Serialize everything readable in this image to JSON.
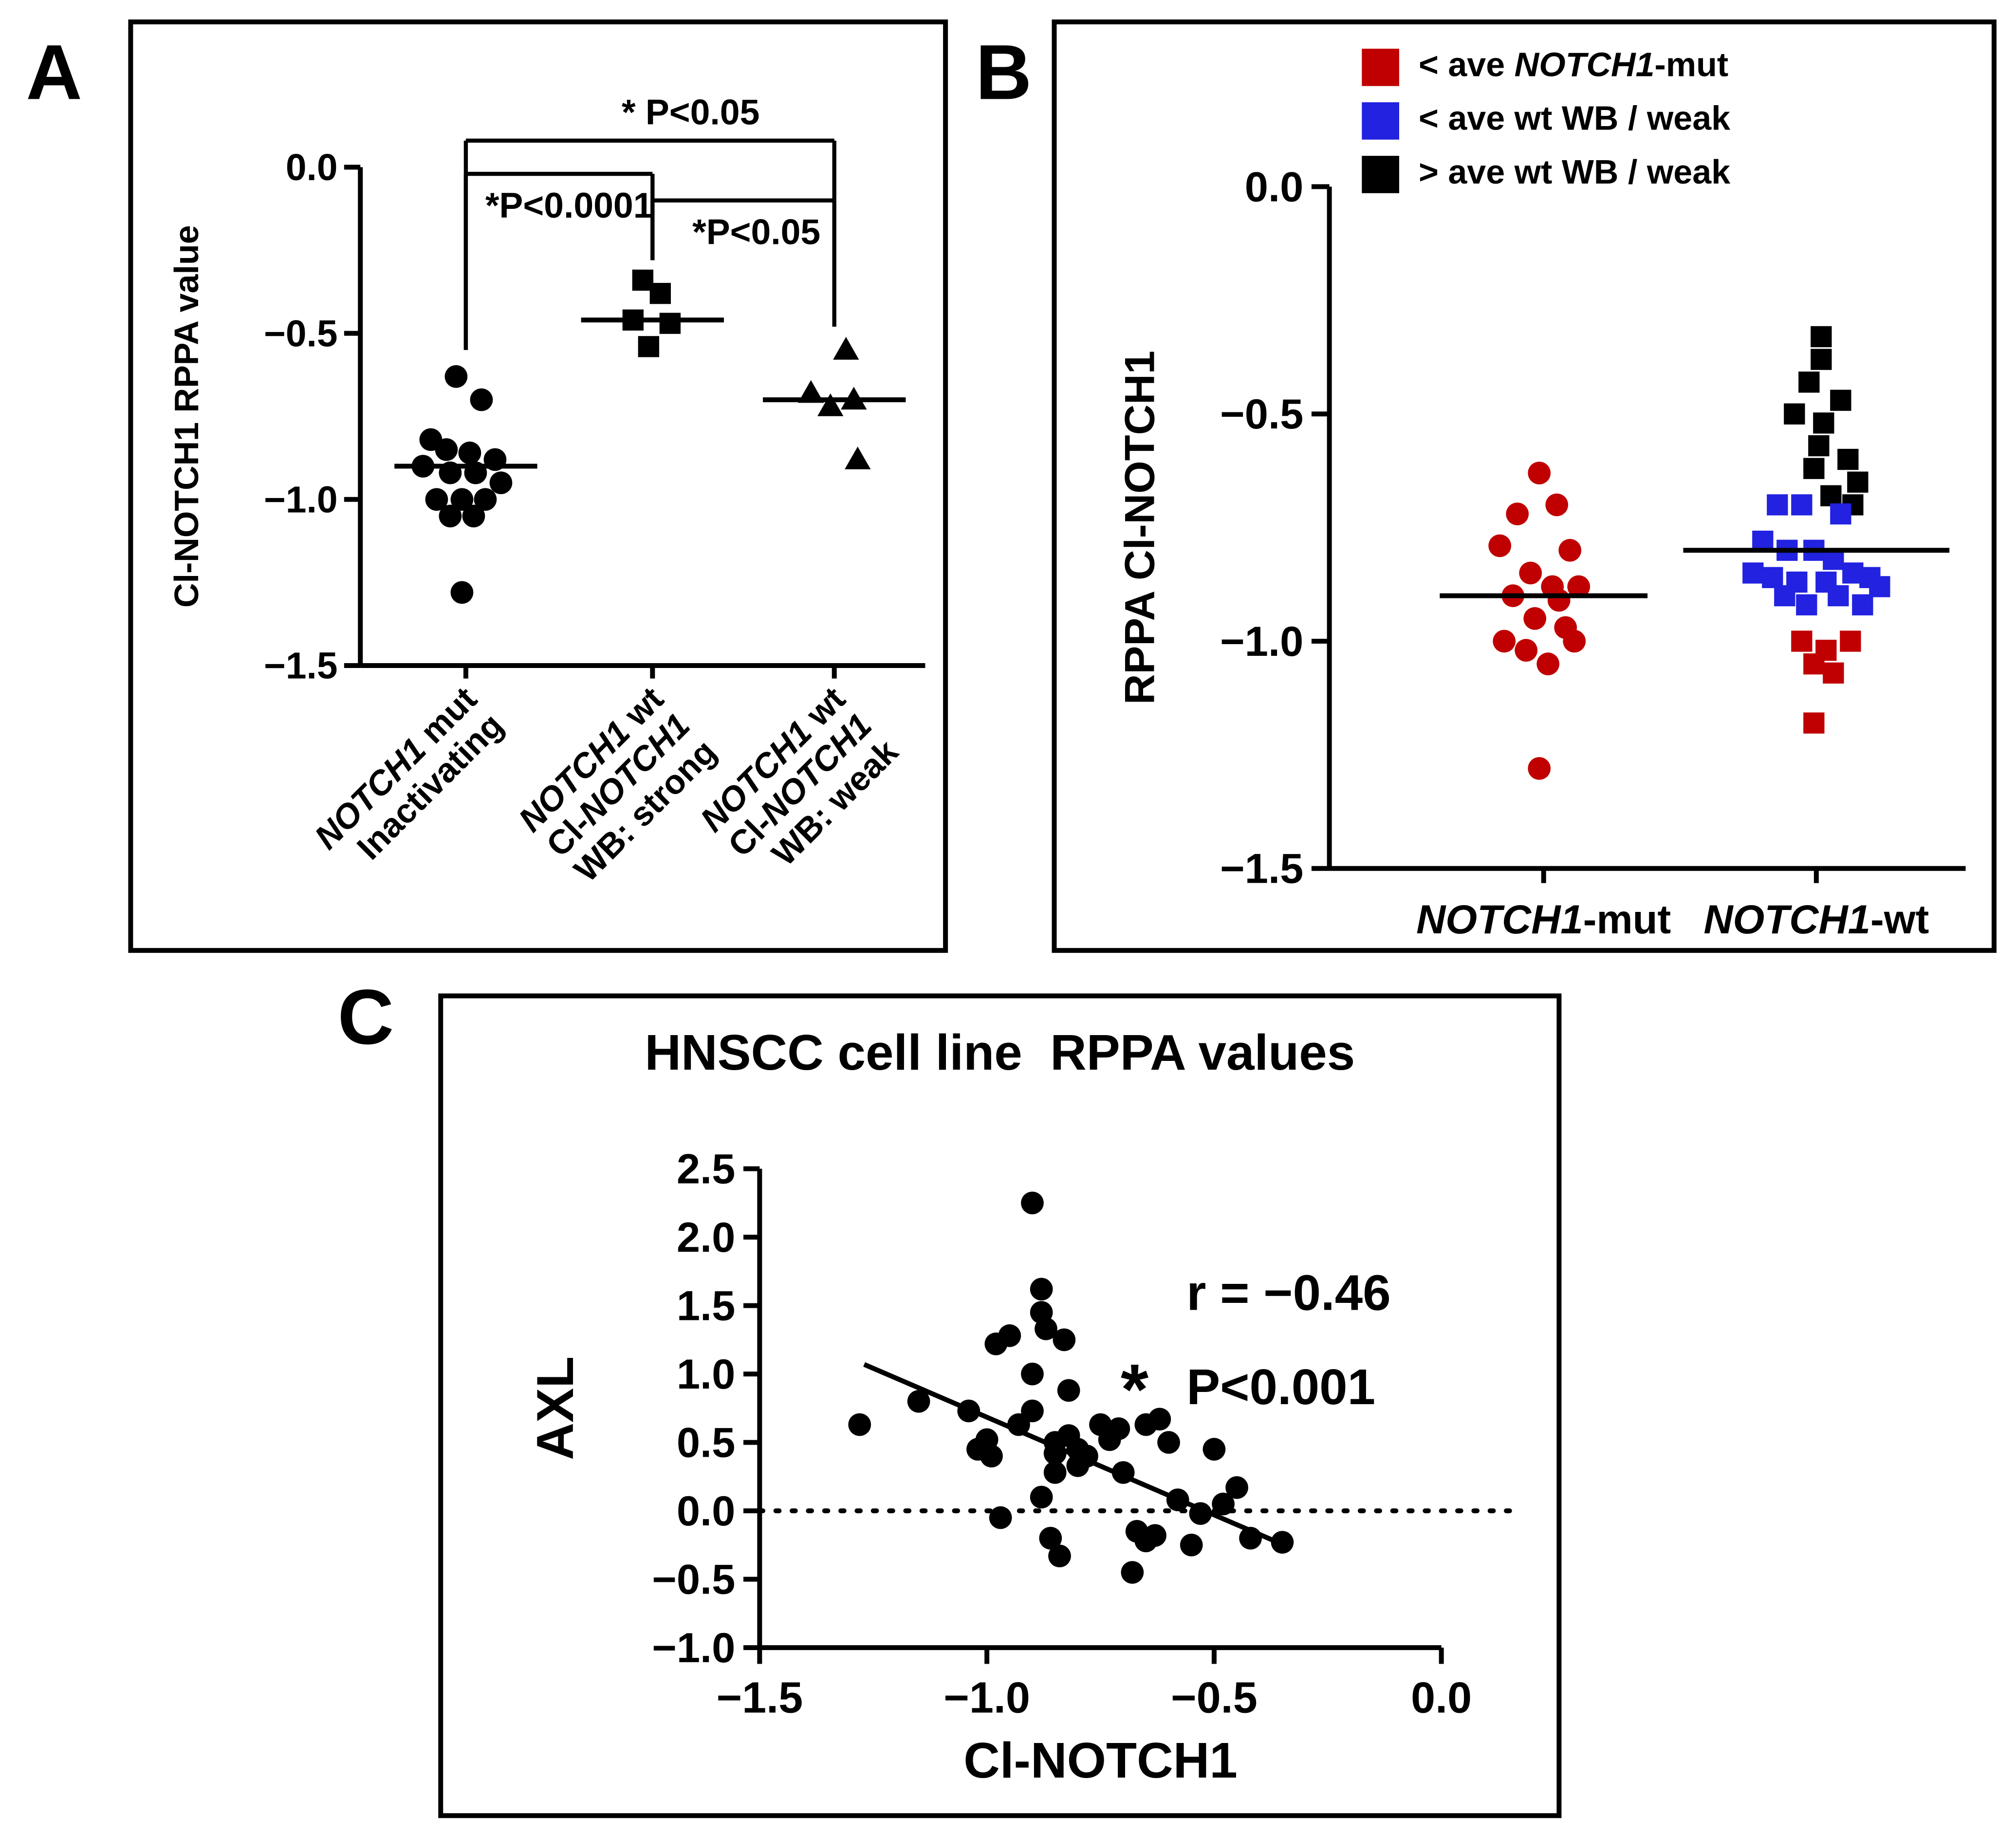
{
  "figure": {
    "panel_a_letter": "A",
    "panel_b_letter": "B",
    "panel_c_letter": "C"
  },
  "chart_data": [
    {
      "id": "A",
      "type": "scatter",
      "subtype": "grouped-dot-plot",
      "ylabel": "Cl-NOTCH1 RPPA value",
      "ylim": [
        -1.5,
        0.0
      ],
      "yticks": [
        0.0,
        -0.5,
        -1.0,
        -1.5
      ],
      "italic_token": "NOTCH1",
      "groups": [
        {
          "label_lines": [
            "NOTCH1 mut",
            "Inactivating"
          ],
          "marker": "circle",
          "color": "#000000",
          "median": -0.9,
          "points": [
            [
              -0.05,
              -0.63
            ],
            [
              0.08,
              -0.7
            ],
            [
              -0.18,
              -0.82
            ],
            [
              -0.1,
              -0.85
            ],
            [
              0.02,
              -0.86
            ],
            [
              0.15,
              -0.88
            ],
            [
              -0.22,
              -0.9
            ],
            [
              -0.08,
              -0.92
            ],
            [
              0.05,
              -0.92
            ],
            [
              0.18,
              -0.95
            ],
            [
              -0.15,
              -1.0
            ],
            [
              -0.02,
              -1.0
            ],
            [
              0.1,
              -1.0
            ],
            [
              -0.08,
              -1.05
            ],
            [
              0.04,
              -1.05
            ],
            [
              -0.02,
              -1.28
            ]
          ]
        },
        {
          "label_lines": [
            "NOTCH1 wt",
            "Cl-NOTCH1",
            "WB: strong"
          ],
          "marker": "square",
          "color": "#000000",
          "median": -0.46,
          "points": [
            [
              -0.05,
              -0.34
            ],
            [
              0.04,
              -0.38
            ],
            [
              -0.1,
              -0.46
            ],
            [
              0.09,
              -0.47
            ],
            [
              -0.02,
              -0.54
            ]
          ]
        },
        {
          "label_lines": [
            "NOTCH1 wt",
            "Cl-NOTCH1",
            "WB: weak"
          ],
          "marker": "triangle",
          "color": "#000000",
          "median": -0.7,
          "points": [
            [
              0.06,
              -0.55
            ],
            [
              -0.12,
              -0.68
            ],
            [
              0.1,
              -0.7
            ],
            [
              -0.02,
              -0.72
            ],
            [
              0.12,
              -0.88
            ]
          ]
        }
      ],
      "significance": [
        {
          "from": 0,
          "to": 2,
          "level": 0.08,
          "drop_from": -0.55,
          "drop_to": -0.1,
          "label": "* P<0.05",
          "label_side": "above"
        },
        {
          "from": 0,
          "to": 1,
          "level": -0.02,
          "drop_from": -0.55,
          "drop_to": -0.28,
          "label": "*P<0.0001",
          "label_side": "below-left"
        },
        {
          "from": 1,
          "to": 2,
          "level": -0.1,
          "drop_from": -0.28,
          "drop_to": -0.48,
          "label": "*P<0.05",
          "label_side": "below"
        }
      ]
    },
    {
      "id": "B",
      "type": "scatter",
      "subtype": "grouped-dot-plot",
      "ylabel": "RPPA Cl-NOTCH1",
      "ylim": [
        -1.5,
        0.0
      ],
      "yticks": [
        0.0,
        -0.5,
        -1.0,
        -1.5
      ],
      "italic_token": "NOTCH1",
      "colors": {
        "red": "#C00000",
        "blue": "#2222E0",
        "black": "#000000"
      },
      "legend": [
        {
          "color_key": "red",
          "label": "< ave NOTCH1-mut"
        },
        {
          "color_key": "blue",
          "label": "< ave wt WB / weak"
        },
        {
          "color_key": "black",
          "label": "> ave wt WB / weak"
        }
      ],
      "groups": [
        {
          "label": "NOTCH1-mut",
          "marker": "circle",
          "color_key": "red",
          "median": -0.9,
          "points": [
            [
              -0.02,
              -0.63
            ],
            [
              -0.12,
              -0.72
            ],
            [
              0.06,
              -0.7
            ],
            [
              -0.2,
              -0.79
            ],
            [
              0.12,
              -0.8
            ],
            [
              -0.06,
              -0.85
            ],
            [
              0.04,
              -0.88
            ],
            [
              -0.14,
              -0.9
            ],
            [
              0.16,
              -0.88
            ],
            [
              0.07,
              -0.91
            ],
            [
              -0.04,
              -0.95
            ],
            [
              0.1,
              -0.97
            ],
            [
              -0.18,
              -1.0
            ],
            [
              -0.08,
              -1.02
            ],
            [
              0.02,
              -1.05
            ],
            [
              0.14,
              -1.0
            ],
            [
              -0.02,
              -1.28
            ]
          ]
        },
        {
          "label": "NOTCH1-wt",
          "marker": "square",
          "color_key": "blue",
          "median": -0.8,
          "points": [
            [
              0.02,
              -0.33,
              "black"
            ],
            [
              0.02,
              -0.38,
              "black"
            ],
            [
              -0.03,
              -0.43,
              "black"
            ],
            [
              0.1,
              -0.47,
              "black"
            ],
            [
              -0.09,
              -0.5,
              "black"
            ],
            [
              0.03,
              -0.52,
              "black"
            ],
            [
              0.01,
              -0.57,
              "black"
            ],
            [
              0.13,
              -0.6,
              "black"
            ],
            [
              -0.01,
              -0.62,
              "black"
            ],
            [
              0.17,
              -0.65,
              "black"
            ],
            [
              0.06,
              -0.68,
              "black"
            ],
            [
              0.15,
              -0.7,
              "black"
            ],
            [
              -0.16,
              -0.7,
              "blue"
            ],
            [
              -0.06,
              -0.7,
              "blue"
            ],
            [
              0.1,
              -0.72,
              "blue"
            ],
            [
              -0.22,
              -0.78,
              "blue"
            ],
            [
              -0.12,
              -0.8,
              "blue"
            ],
            [
              -0.01,
              -0.8,
              "blue"
            ],
            [
              0.07,
              -0.82,
              "blue"
            ],
            [
              -0.26,
              -0.85,
              "blue"
            ],
            [
              -0.18,
              -0.86,
              "blue"
            ],
            [
              -0.08,
              -0.87,
              "blue"
            ],
            [
              0.04,
              -0.87,
              "blue"
            ],
            [
              0.15,
              -0.85,
              "blue"
            ],
            [
              0.22,
              -0.86,
              "blue"
            ],
            [
              -0.13,
              -0.9,
              "blue"
            ],
            [
              -0.04,
              -0.92,
              "blue"
            ],
            [
              0.09,
              -0.9,
              "blue"
            ],
            [
              0.19,
              -0.92,
              "blue"
            ],
            [
              0.26,
              -0.88,
              "blue"
            ],
            [
              -0.06,
              -1.0,
              "red"
            ],
            [
              0.04,
              -1.02,
              "red"
            ],
            [
              -0.01,
              -1.05,
              "red"
            ],
            [
              0.07,
              -1.07,
              "red"
            ],
            [
              0.14,
              -1.0,
              "red"
            ],
            [
              -0.01,
              -1.18,
              "red"
            ]
          ]
        }
      ]
    },
    {
      "id": "C",
      "type": "scatter",
      "title": "HNSCC cell line  RPPA values",
      "xlabel": "Cl-NOTCH1",
      "ylabel": "AXL",
      "xlim": [
        -1.5,
        0.0
      ],
      "ylim": [
        -1.0,
        2.5
      ],
      "xticks": [
        -1.5,
        -1.0,
        -0.5,
        0.0
      ],
      "yticks": [
        2.5,
        2.0,
        1.5,
        1.0,
        0.5,
        0.0,
        -0.5,
        -1.0
      ],
      "zero_line_y": 0.0,
      "point_color": "#000000",
      "regression": {
        "x1": -1.27,
        "y1": 1.07,
        "x2": -0.36,
        "y2": -0.23
      },
      "correlation": {
        "r_label": "r = −0.46",
        "star": "*",
        "p_label": "P<0.001"
      },
      "points": [
        [
          -1.28,
          0.63
        ],
        [
          -1.15,
          0.8
        ],
        [
          -1.04,
          0.73
        ],
        [
          -1.02,
          0.45
        ],
        [
          -1.0,
          0.52
        ],
        [
          -0.99,
          0.4
        ],
        [
          -0.98,
          1.22
        ],
        [
          -0.95,
          1.28
        ],
        [
          -0.97,
          -0.05
        ],
        [
          -0.93,
          0.63
        ],
        [
          -0.9,
          2.25
        ],
        [
          -0.9,
          1.0
        ],
        [
          -0.9,
          0.73
        ],
        [
          -0.88,
          1.62
        ],
        [
          -0.88,
          1.45
        ],
        [
          -0.87,
          1.33
        ],
        [
          -0.88,
          0.1
        ],
        [
          -0.86,
          -0.2
        ],
        [
          -0.85,
          0.5
        ],
        [
          -0.85,
          0.42
        ],
        [
          -0.85,
          0.28
        ],
        [
          -0.84,
          -0.33
        ],
        [
          -0.83,
          1.25
        ],
        [
          -0.82,
          0.88
        ],
        [
          -0.82,
          0.55
        ],
        [
          -0.8,
          0.45
        ],
        [
          -0.8,
          0.33
        ],
        [
          -0.78,
          0.4
        ],
        [
          -0.75,
          0.63
        ],
        [
          -0.73,
          0.52
        ],
        [
          -0.71,
          0.6
        ],
        [
          -0.7,
          0.28
        ],
        [
          -0.68,
          -0.45
        ],
        [
          -0.67,
          -0.15
        ],
        [
          -0.65,
          0.63
        ],
        [
          -0.65,
          -0.22
        ],
        [
          -0.63,
          -0.18
        ],
        [
          -0.62,
          0.67
        ],
        [
          -0.6,
          0.5
        ],
        [
          -0.58,
          0.08
        ],
        [
          -0.55,
          -0.25
        ],
        [
          -0.53,
          -0.02
        ],
        [
          -0.5,
          0.45
        ],
        [
          -0.48,
          0.05
        ],
        [
          -0.45,
          0.17
        ],
        [
          -0.42,
          -0.2
        ],
        [
          -0.35,
          -0.23
        ]
      ]
    }
  ]
}
